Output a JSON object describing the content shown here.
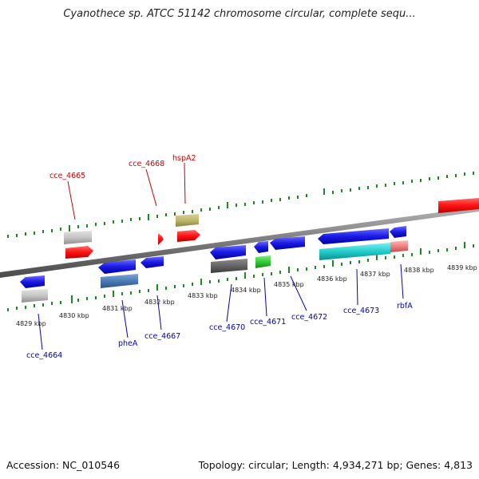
{
  "title": "Cyanothece sp. ATCC 51142 chromosome circular, complete sequ...",
  "colors": {
    "backbone": "#8a8a8a",
    "tick": "#1d8a1d",
    "forward_label": "#cc0000",
    "reverse_label": "#0000bb",
    "forward_gene": "#ff1111",
    "reverse_gene": "#1a1ae6"
  },
  "kbp_ticks": [
    "4829 kbp",
    "4830 kbp",
    "4831 kbp",
    "4832 kbp",
    "4833 kbp",
    "4834 kbp",
    "4835 kbp",
    "4836 kbp",
    "4837 kbp",
    "4838 kbp",
    "4839 kbp"
  ],
  "forward_labels": [
    "cce_4665",
    "cce_4668",
    "hspA2"
  ],
  "reverse_labels": [
    "cce_4664",
    "pheA",
    "cce_4667",
    "cce_4670",
    "cce_4671",
    "cce_4672",
    "cce_4673",
    "rbfA"
  ],
  "footer": {
    "accession": "Accession: NC_010546",
    "stats": "Topology: circular; Length: 4,934,271 bp; Genes: 4,813"
  }
}
